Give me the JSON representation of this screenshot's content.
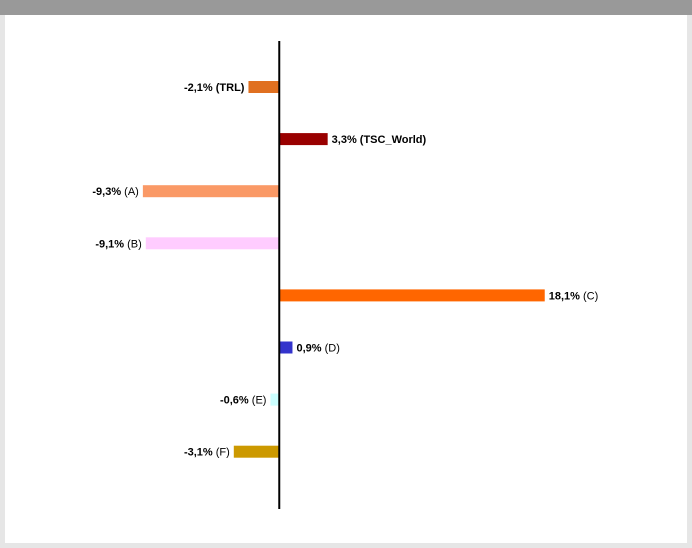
{
  "title": "",
  "chart_data": {
    "type": "bar",
    "orientation": "horizontal",
    "categories": [
      "TRL",
      "TSC_World",
      "A",
      "B",
      "C",
      "D",
      "E",
      "F"
    ],
    "values": [
      -2.1,
      3.3,
      -9.3,
      -9.1,
      18.1,
      0.9,
      -0.6,
      -3.1
    ],
    "value_labels": [
      "-2,1%",
      "3,3%",
      "-9,3%",
      "-9,1%",
      "18,1%",
      "0,9%",
      "-0,6%",
      "-3,1%"
    ],
    "category_labels": [
      "(TRL)",
      "(TSC_World)",
      "(A)",
      "(B)",
      "(C)",
      "(D)",
      "(E)",
      "(F)"
    ],
    "bold_category": [
      true,
      true,
      false,
      false,
      false,
      false,
      false,
      false
    ],
    "colors": [
      "#e07020",
      "#990000",
      "#fa9966",
      "#ffccff",
      "#ff6600",
      "#3333cc",
      "#ccffff",
      "#cc9900"
    ],
    "xlim": [
      -18.7,
      27.8
    ],
    "grid": false,
    "legend": "none"
  }
}
